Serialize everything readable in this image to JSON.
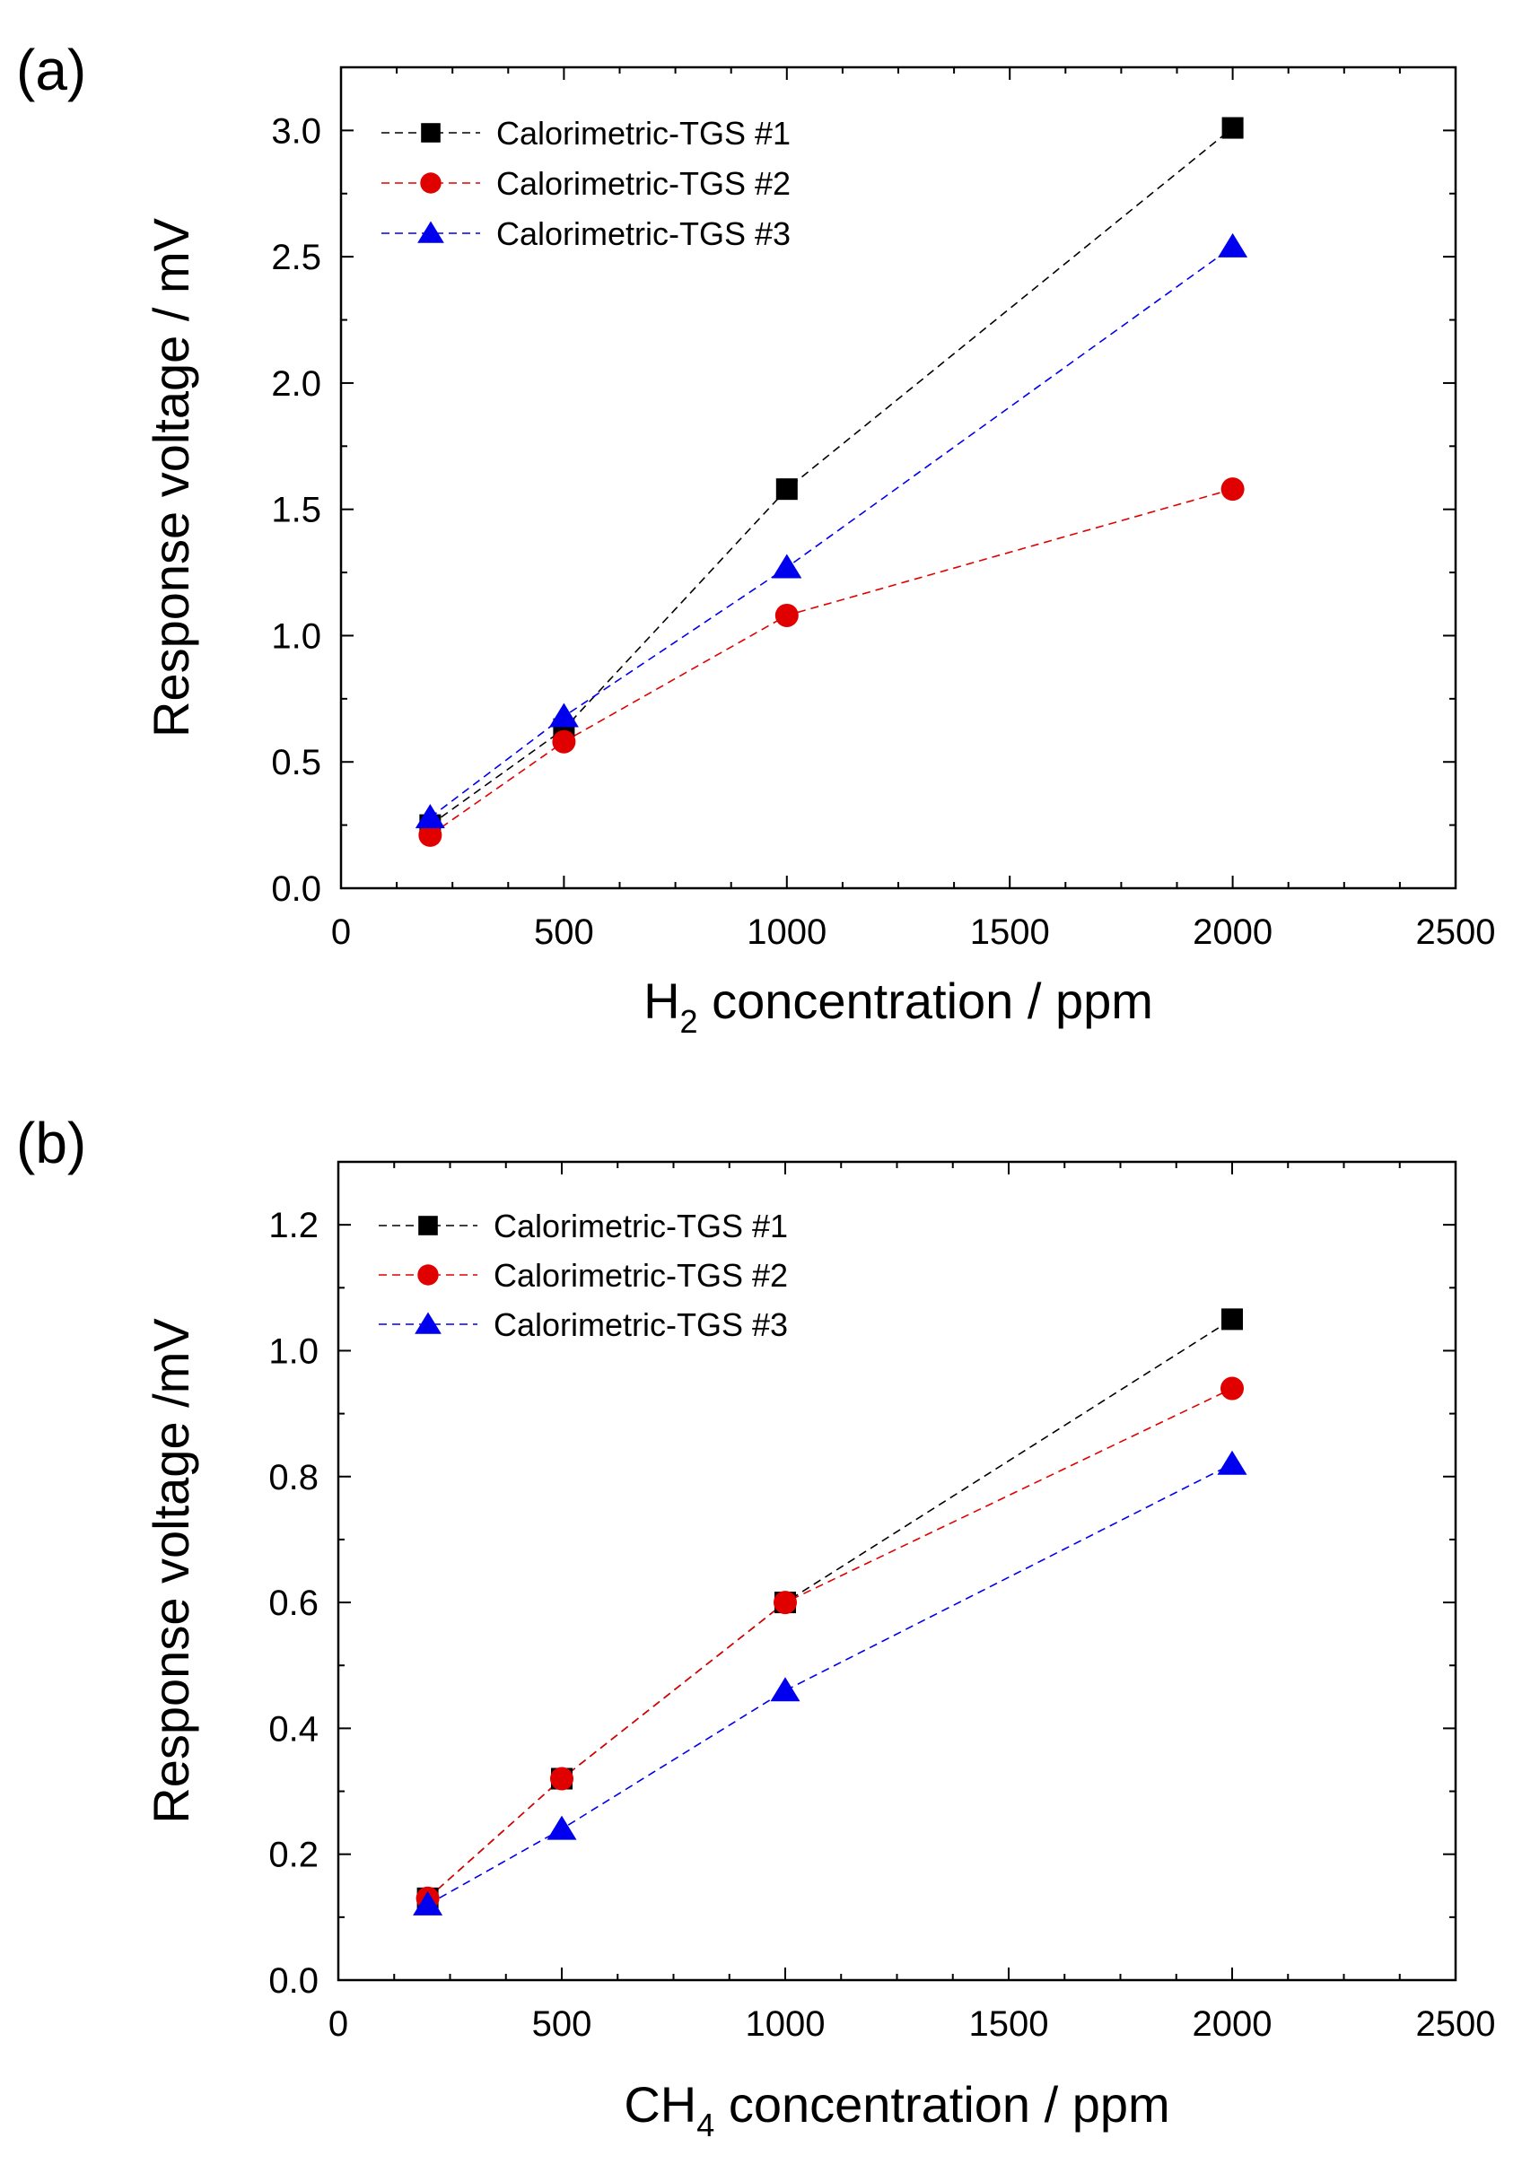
{
  "chart_data": [
    {
      "type": "scatter",
      "panel_label": "(a)",
      "title": "",
      "xlabel": {
        "main": "H",
        "sub": "2",
        "rest": " concentration / ppm"
      },
      "ylabel": "Response voltage / mV",
      "xlim": [
        0,
        2500
      ],
      "ylim": [
        0,
        3.25
      ],
      "xticks": [
        0,
        500,
        1000,
        1500,
        2000,
        2500
      ],
      "xtick_labels": [
        "0",
        "500",
        "1000",
        "1500",
        "2000",
        "2500"
      ],
      "yticks": [
        0.0,
        0.5,
        1.0,
        1.5,
        2.0,
        2.5,
        3.0
      ],
      "ytick_labels": [
        "0.0",
        "0.5",
        "1.0",
        "1.5",
        "2.0",
        "2.5",
        "3.0"
      ],
      "grid": false,
      "legend_position": "top-left",
      "x": [
        200,
        500,
        1000,
        2000
      ],
      "series": [
        {
          "name": "Calorimetric-TGS #1",
          "color": "#000000",
          "marker": "square",
          "values": [
            0.25,
            0.63,
            1.58,
            3.01
          ]
        },
        {
          "name": "Calorimetric-TGS #2",
          "color": "#e00000",
          "marker": "circle",
          "values": [
            0.21,
            0.58,
            1.08,
            1.58
          ]
        },
        {
          "name": "Calorimetric-TGS #3",
          "color": "#0000ee",
          "marker": "triangle",
          "values": [
            0.28,
            0.68,
            1.27,
            2.54
          ]
        }
      ]
    },
    {
      "type": "scatter",
      "panel_label": "(b)",
      "title": "",
      "xlabel": {
        "main": "CH",
        "sub": "4",
        "rest": " concentration / ppm"
      },
      "ylabel": "Response voltage /mV",
      "xlim": [
        0,
        2500
      ],
      "ylim": [
        0,
        1.3
      ],
      "xticks": [
        0,
        500,
        1000,
        1500,
        2000,
        2500
      ],
      "xtick_labels": [
        "0",
        "500",
        "1000",
        "1500",
        "2000",
        "2500"
      ],
      "yticks": [
        0.0,
        0.2,
        0.4,
        0.6,
        0.8,
        1.0,
        1.2
      ],
      "ytick_labels": [
        "0.0",
        "0.2",
        "0.4",
        "0.6",
        "0.8",
        "1.0",
        "1.2"
      ],
      "grid": false,
      "legend_position": "top-left",
      "x": [
        200,
        500,
        1000,
        2000
      ],
      "series": [
        {
          "name": "Calorimetric-TGS #1",
          "color": "#000000",
          "marker": "square",
          "values": [
            0.13,
            0.32,
            0.6,
            1.05
          ]
        },
        {
          "name": "Calorimetric-TGS #2",
          "color": "#e00000",
          "marker": "circle",
          "values": [
            0.13,
            0.32,
            0.6,
            0.94
          ]
        },
        {
          "name": "Calorimetric-TGS #3",
          "color": "#0000ee",
          "marker": "triangle",
          "values": [
            0.12,
            0.24,
            0.46,
            0.82
          ]
        }
      ]
    }
  ]
}
